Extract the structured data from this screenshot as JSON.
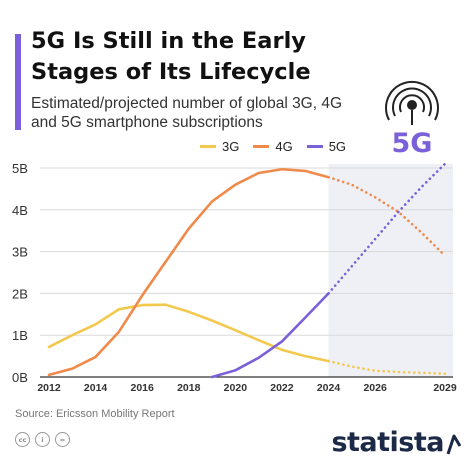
{
  "header": {
    "title": "5G Is Still in the Early Stages of Its Lifecycle",
    "subtitle": "Estimated/projected number of global 3G, 4G and 5G smartphone subscriptions"
  },
  "logo_text": "5G",
  "colors": {
    "accent": "#7b61d9",
    "series_3g": "#f2c94c",
    "series_4g": "#f08a4b",
    "series_5g": "#7b61d9",
    "projection_band": "#eef0f6",
    "brand": "#1c2a48"
  },
  "chart_data": {
    "type": "line",
    "x": [
      2012,
      2013,
      2014,
      2015,
      2016,
      2017,
      2018,
      2019,
      2020,
      2021,
      2022,
      2023,
      2024,
      2025,
      2026,
      2027,
      2028,
      2029
    ],
    "x_ticks": [
      "2012",
      "2014",
      "2016",
      "2018",
      "2020",
      "2022",
      "2024",
      "2026",
      "2029"
    ],
    "y_ticks": [
      "0B",
      "1B",
      "2B",
      "3B",
      "4B",
      "5B"
    ],
    "ylim": [
      0,
      5
    ],
    "y_unit": "billion",
    "projection_from": 2024,
    "series": [
      {
        "name": "3G",
        "values": [
          0.72,
          1.0,
          1.26,
          1.62,
          1.72,
          1.73,
          1.56,
          1.35,
          1.12,
          0.88,
          0.65,
          0.5,
          0.38,
          0.25,
          0.15,
          0.12,
          0.1,
          0.08
        ]
      },
      {
        "name": "4G",
        "values": [
          0.05,
          0.2,
          0.48,
          1.08,
          1.95,
          2.75,
          3.55,
          4.2,
          4.6,
          4.88,
          4.97,
          4.93,
          4.78,
          4.6,
          4.3,
          3.95,
          3.45,
          2.9
        ]
      },
      {
        "name": "5G",
        "values": [
          null,
          null,
          null,
          null,
          null,
          null,
          null,
          0.0,
          0.16,
          0.46,
          0.85,
          1.42,
          2.0,
          2.65,
          3.3,
          3.95,
          4.55,
          5.1
        ]
      }
    ]
  },
  "source": "Source: Ericsson Mobility Report",
  "footer": {
    "license_icons": [
      "cc",
      "i",
      "="
    ],
    "brand": "statista"
  }
}
